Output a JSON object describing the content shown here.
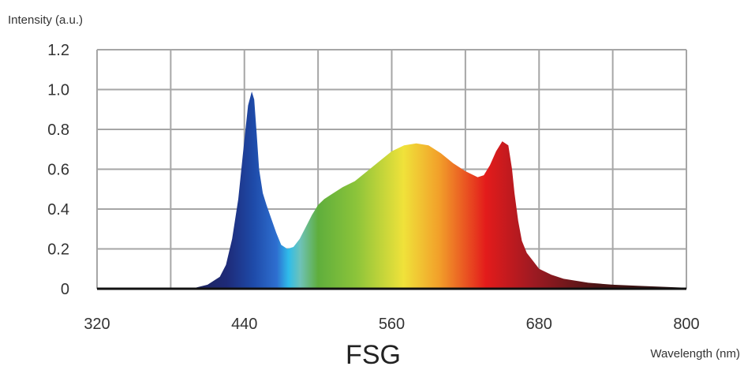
{
  "chart_data": {
    "type": "area",
    "title": "FSG",
    "xlabel": "Wavelength (nm)",
    "ylabel": "Intensity (a.u.)",
    "xlim": [
      320,
      800
    ],
    "ylim": [
      0,
      1.2
    ],
    "x_ticks": [
      320,
      440,
      560,
      680,
      800
    ],
    "x_tick_labels": [
      "320",
      "440",
      "560",
      "680",
      "800"
    ],
    "y_ticks": [
      0,
      0.2,
      0.4,
      0.6,
      0.8,
      1.0,
      1.2
    ],
    "y_tick_labels": [
      "0",
      "0.2",
      "0.4",
      "0.6",
      "0.8",
      "1.0",
      "1.2"
    ],
    "grid": true,
    "legend": "none",
    "fill": "visible-spectrum gradient",
    "series": [
      {
        "x": [
          380,
          400,
          410,
          420,
          425,
          430,
          435,
          440,
          443,
          446,
          448,
          450,
          452,
          455,
          458,
          462,
          466,
          470,
          475,
          480,
          485,
          490,
          495,
          500,
          505,
          510,
          515,
          520,
          530,
          540,
          550,
          560,
          570,
          580,
          590,
          600,
          610,
          620,
          630,
          635,
          640,
          645,
          650,
          655,
          658,
          660,
          663,
          666,
          670,
          675,
          680,
          690,
          700,
          720,
          740,
          760,
          780,
          800
        ],
        "y": [
          0.0,
          0.005,
          0.02,
          0.06,
          0.12,
          0.25,
          0.45,
          0.75,
          0.92,
          0.99,
          0.95,
          0.78,
          0.6,
          0.48,
          0.42,
          0.35,
          0.28,
          0.22,
          0.2,
          0.21,
          0.25,
          0.31,
          0.37,
          0.42,
          0.45,
          0.47,
          0.49,
          0.51,
          0.54,
          0.59,
          0.64,
          0.69,
          0.72,
          0.73,
          0.72,
          0.68,
          0.63,
          0.59,
          0.56,
          0.57,
          0.62,
          0.69,
          0.74,
          0.72,
          0.6,
          0.48,
          0.34,
          0.24,
          0.18,
          0.14,
          0.1,
          0.07,
          0.05,
          0.03,
          0.02,
          0.015,
          0.01,
          0.005
        ]
      }
    ]
  }
}
